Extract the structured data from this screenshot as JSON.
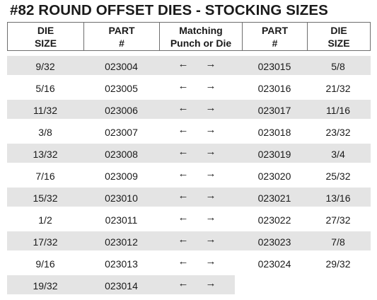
{
  "title": "#82 ROUND OFFSET DIES - STOCKING SIZES",
  "headers": [
    {
      "line1": "DIE",
      "line2": "SIZE"
    },
    {
      "line1": "PART",
      "line2": "#"
    },
    {
      "line1": "Matching",
      "line2": "Punch or Die"
    },
    {
      "line1": "PART",
      "line2": "#"
    },
    {
      "line1": "DIE",
      "line2": "SIZE"
    }
  ],
  "arrows": {
    "left": "←",
    "right": "→"
  },
  "rows": [
    {
      "die_left": "9/32",
      "part_left": "023004",
      "part_right": "023015",
      "die_right": "5/8"
    },
    {
      "die_left": "5/16",
      "part_left": "023005",
      "part_right": "023016",
      "die_right": "21/32"
    },
    {
      "die_left": "11/32",
      "part_left": "023006",
      "part_right": "023017",
      "die_right": "11/16"
    },
    {
      "die_left": "3/8",
      "part_left": "023007",
      "part_right": "023018",
      "die_right": "23/32"
    },
    {
      "die_left": "13/32",
      "part_left": "023008",
      "part_right": "023019",
      "die_right": "3/4"
    },
    {
      "die_left": "7/16",
      "part_left": "023009",
      "part_right": "023020",
      "die_right": "25/32"
    },
    {
      "die_left": "15/32",
      "part_left": "023010",
      "part_right": "023021",
      "die_right": "13/16"
    },
    {
      "die_left": "1/2",
      "part_left": "023011",
      "part_right": "023022",
      "die_right": "27/32"
    },
    {
      "die_left": "17/32",
      "part_left": "023012",
      "part_right": "023023",
      "die_right": "7/8"
    },
    {
      "die_left": "9/16",
      "part_left": "023013",
      "part_right": "023024",
      "die_right": "29/32"
    },
    {
      "die_left": "19/32",
      "part_left": "023014",
      "part_right": "",
      "die_right": ""
    }
  ]
}
